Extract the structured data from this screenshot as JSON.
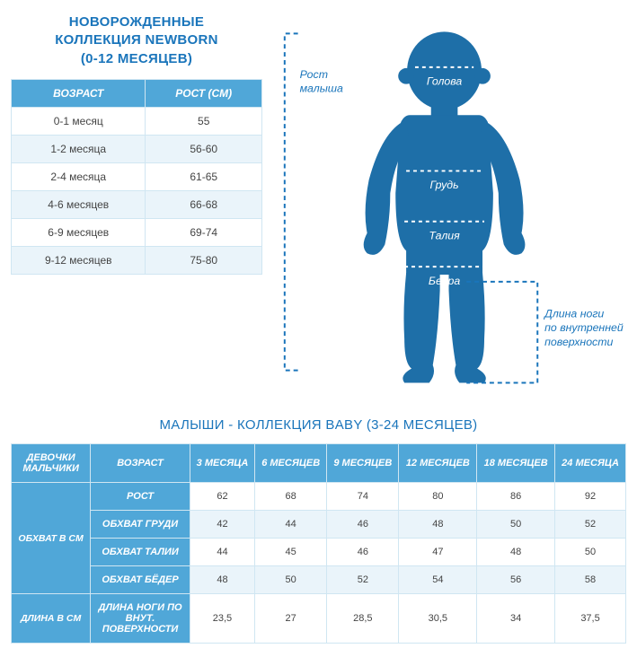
{
  "newborn": {
    "title_line1": "НОВОРОЖДЕННЫЕ",
    "title_line2": "КОЛЛЕКЦИЯ NEWBORN",
    "title_line3": "(0-12 МЕСЯЦЕВ)",
    "columns": [
      "ВОЗРАСТ",
      "РОСТ (СМ)"
    ],
    "rows": [
      [
        "0-1 месяц",
        "55"
      ],
      [
        "1-2 месяца",
        "56-60"
      ],
      [
        "2-4 месяца",
        "61-65"
      ],
      [
        "4-6 месяцев",
        "66-68"
      ],
      [
        "6-9 месяцев",
        "69-74"
      ],
      [
        "9-12 месяцев",
        "75-80"
      ]
    ]
  },
  "diagram": {
    "height_label_1": "Рост",
    "height_label_2": "малыша",
    "head": "Голова",
    "chest": "Грудь",
    "waist": "Талия",
    "hips": "Бедра",
    "leg_label_1": "Длина ноги",
    "leg_label_2": "по внутренней",
    "leg_label_3": "поверхности",
    "body_color": "#1e6fa8",
    "accent_color": "#1a75bb"
  },
  "baby": {
    "title": "МАЛЫШИ - КОЛЛЕКЦИЯ BABY (3-24 МЕСЯЦЕВ)",
    "corner_line1": "ДЕВОЧКИ",
    "corner_line2": "МАЛЬЧИКИ",
    "age_header": "ВОЗРАСТ",
    "ages": [
      "3 МЕСЯЦА",
      "6 МЕСЯЦЕВ",
      "9 МЕСЯЦЕВ",
      "12 МЕСЯЦЕВ",
      "18 МЕСЯЦЕВ",
      "24 МЕСЯЦА"
    ],
    "group1_label": "ОБХВАТ В СМ",
    "group1_rows": [
      {
        "label": "РОСТ",
        "values": [
          "62",
          "68",
          "74",
          "80",
          "86",
          "92"
        ]
      },
      {
        "label": "ОБХВАТ ГРУДИ",
        "values": [
          "42",
          "44",
          "46",
          "48",
          "50",
          "52"
        ]
      },
      {
        "label": "ОБХВАТ ТАЛИИ",
        "values": [
          "44",
          "45",
          "46",
          "47",
          "48",
          "50"
        ]
      },
      {
        "label": "ОБХВАТ БЁДЕР",
        "values": [
          "48",
          "50",
          "52",
          "54",
          "56",
          "58"
        ]
      }
    ],
    "group2_label": "ДЛИНА В СМ",
    "group2_rows": [
      {
        "label_line1": "ДЛИНА НОГИ ПО",
        "label_line2": "ВНУТ.",
        "label_line3": "ПОВЕРХНОСТИ",
        "values": [
          "23,5",
          "27",
          "28,5",
          "30,5",
          "34",
          "37,5"
        ]
      }
    ]
  },
  "colors": {
    "header_bg": "#50a7d8",
    "border": "#d0e6f2",
    "alt_row": "#eaf4fa",
    "title": "#1a75bb"
  }
}
